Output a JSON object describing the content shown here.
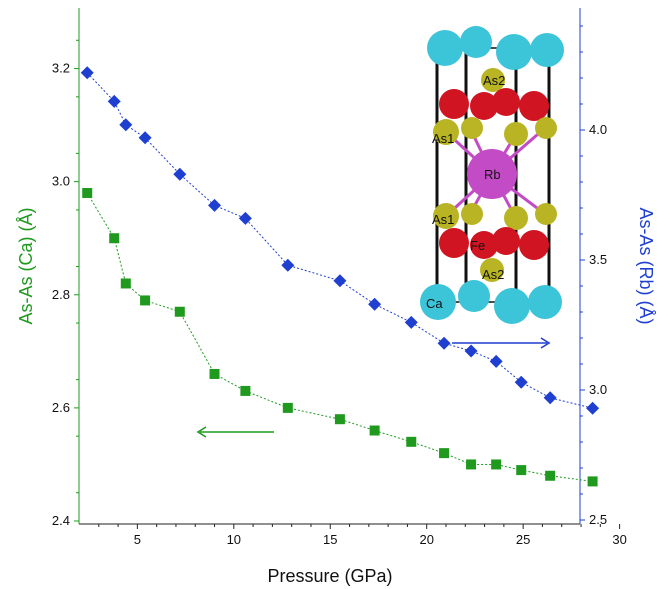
{
  "colors": {
    "ca_series": "#1f9a1f",
    "rb_series": "#1f3fd0",
    "ca_atom": "#3cc4d9",
    "as_atom": "#b8b424",
    "fe_atom": "#d01422",
    "rb_atom": "#c44bc6",
    "cell_edge": "#111111"
  },
  "chart_data": {
    "type": "scatter",
    "xlabel": "Pressure (GPa)",
    "ylabel_left": "As-As (Ca) (Å)",
    "ylabel_right": "As-As (Rb) (Å)",
    "xlim": [
      2,
      30
    ],
    "ylim_left": [
      2.4,
      3.3
    ],
    "ylim_right": [
      2.5,
      4.5
    ],
    "x_ticks": [
      "5",
      "10",
      "15",
      "20",
      "25",
      "30"
    ],
    "y_left_ticks": [
      "2.4",
      "2.6",
      "2.8",
      "3.0",
      "3.2"
    ],
    "y_right_ticks": [
      "2.5",
      "3.0",
      "3.5",
      "4.0"
    ],
    "series": [
      {
        "axis": "left",
        "marker": "square",
        "x": [
          2.4,
          3.8,
          4.4,
          5.4,
          7.2,
          9.0,
          10.6,
          12.8,
          15.5,
          17.3,
          19.2,
          20.9,
          22.3,
          23.6,
          24.9,
          26.4,
          28.6
        ],
        "y": [
          2.98,
          2.9,
          2.82,
          2.79,
          2.77,
          2.66,
          2.63,
          2.6,
          2.58,
          2.56,
          2.54,
          2.52,
          2.5,
          2.5,
          2.49,
          2.48,
          2.47
        ]
      },
      {
        "axis": "right",
        "marker": "diamond",
        "x": [
          2.4,
          3.8,
          4.4,
          5.4,
          7.2,
          9.0,
          10.6,
          12.8,
          15.5,
          17.3,
          19.2,
          20.9,
          22.3,
          23.6,
          24.9,
          26.4,
          28.6
        ],
        "y": [
          4.22,
          4.11,
          4.02,
          3.97,
          3.83,
          3.71,
          3.66,
          3.48,
          3.42,
          3.33,
          3.26,
          3.18,
          3.15,
          3.11,
          3.03,
          2.97,
          2.93
        ]
      }
    ],
    "annotations": {
      "ca_arrow_direction": "left",
      "rb_arrow_direction": "right"
    }
  },
  "structure_labels": {
    "as2_top": "As2",
    "as1_upper": "As1",
    "rb": "Rb",
    "as1_lower": "As1",
    "fe": "Fe",
    "as2_bottom": "As2",
    "ca": "Ca"
  }
}
